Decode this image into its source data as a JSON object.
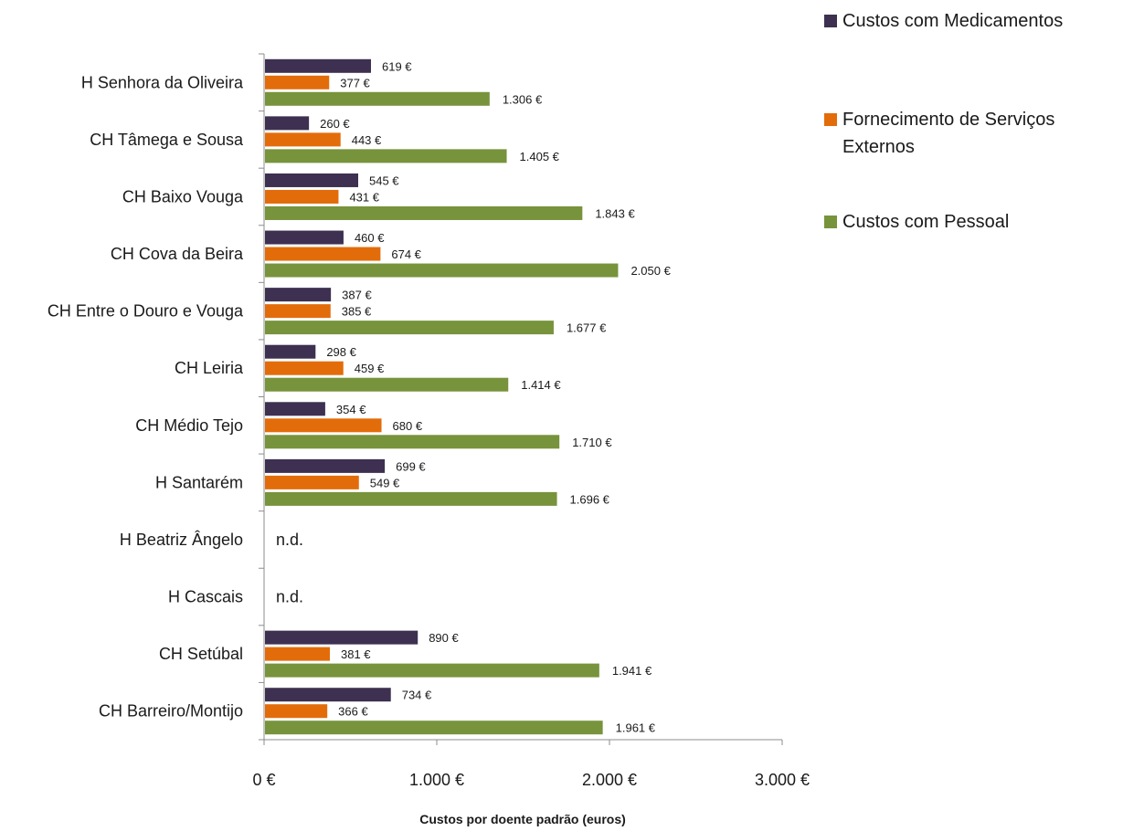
{
  "chart_data": {
    "type": "bar",
    "orientation": "horizontal",
    "categories": [
      "H Senhora da Oliveira",
      "CH Tâmega e Sousa",
      "CH Baixo Vouga",
      "CH Cova da Beira",
      "CH Entre o Douro e Vouga",
      "CH Leiria",
      "CH Médio Tejo",
      "H Santarém",
      "H Beatriz Ângelo",
      "H Cascais",
      "CH Setúbal",
      "CH Barreiro/Montijo"
    ],
    "series": [
      {
        "name": "Custos com Medicamentos",
        "color": "#3d3050",
        "values": [
          619,
          260,
          545,
          460,
          387,
          298,
          354,
          699,
          null,
          null,
          890,
          734
        ],
        "labels": [
          "619 €",
          "260 €",
          "545 €",
          "460 €",
          "387 €",
          "298 €",
          "354 €",
          "699 €",
          "",
          "",
          "890 €",
          "734 €"
        ]
      },
      {
        "name": "Fornecimento de Serviços Externos",
        "color": "#e36c0a",
        "values": [
          377,
          443,
          431,
          674,
          385,
          459,
          680,
          549,
          null,
          null,
          381,
          366
        ],
        "labels": [
          "377 €",
          "443 €",
          "431 €",
          "674 €",
          "385 €",
          "459 €",
          "680 €",
          "549 €",
          "",
          "",
          "381 €",
          "366 €"
        ]
      },
      {
        "name": "Custos com Pessoal",
        "color": "#77933c",
        "values": [
          1306,
          1405,
          1843,
          2050,
          1677,
          1414,
          1710,
          1696,
          null,
          null,
          1941,
          1961
        ],
        "labels": [
          "1.306 €",
          "1.405 €",
          "1.843 €",
          "2.050 €",
          "1.677 €",
          "1.414 €",
          "1.710 €",
          "1.696 €",
          "",
          "",
          "1.941 €",
          "1.961 €"
        ]
      }
    ],
    "missing_label": "n.d.",
    "xlabel": "Custos por doente padrão (euros)",
    "ylabel": "",
    "title": "",
    "xlim": [
      0,
      3000
    ],
    "xticks": [
      0,
      1000,
      2000,
      3000
    ],
    "xtick_labels": [
      "0 €",
      "1.000 €",
      "2.000 €",
      "3.000 €"
    ],
    "grid": false,
    "legend_position": "top-right"
  }
}
